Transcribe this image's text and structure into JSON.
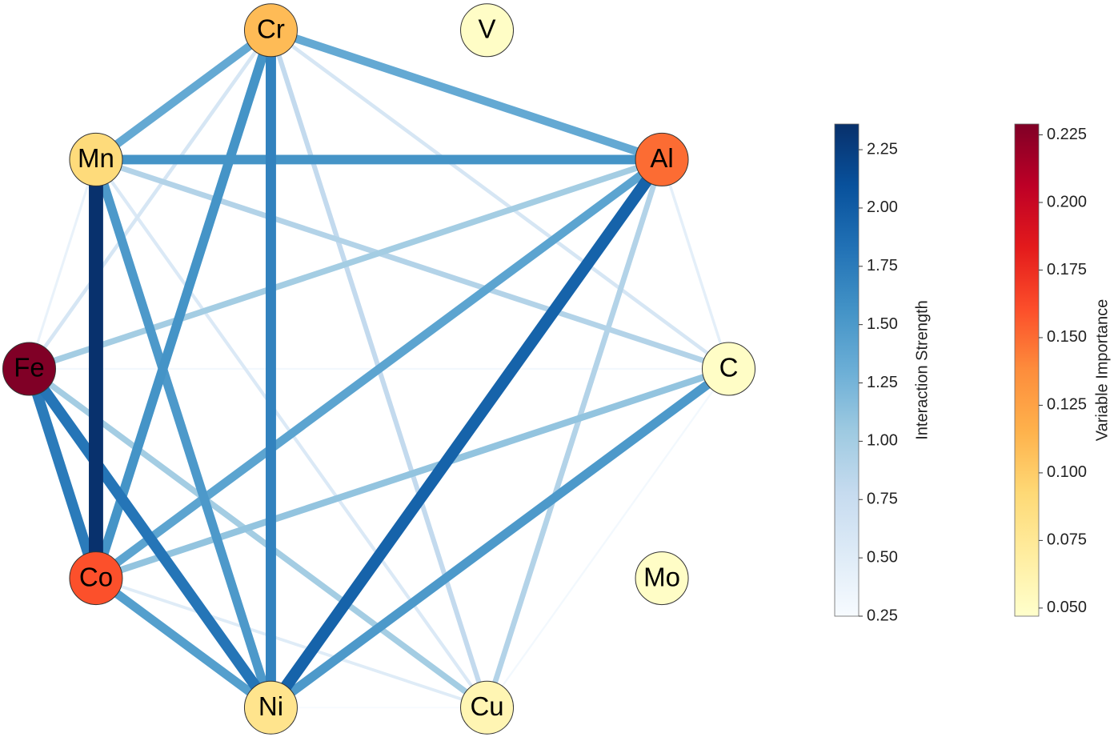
{
  "chart_data": {
    "type": "network",
    "nodes": [
      {
        "name": "V",
        "importance": 0.05
      },
      {
        "name": "Al",
        "importance": 0.15
      },
      {
        "name": "C",
        "importance": 0.05
      },
      {
        "name": "Mo",
        "importance": 0.05
      },
      {
        "name": "Cu",
        "importance": 0.06
      },
      {
        "name": "Ni",
        "importance": 0.08
      },
      {
        "name": "Co",
        "importance": 0.16
      },
      {
        "name": "Fe",
        "importance": 0.229
      },
      {
        "name": "Mn",
        "importance": 0.09
      },
      {
        "name": "Cr",
        "importance": 0.11
      }
    ],
    "edges": [
      {
        "source": "Fe",
        "target": "C",
        "value": 0.3
      },
      {
        "source": "Ni",
        "target": "Cu",
        "value": 0.25
      },
      {
        "source": "C",
        "target": "Cu",
        "value": 0.3
      },
      {
        "source": "Fe",
        "target": "Mn",
        "value": 0.4
      },
      {
        "source": "Al",
        "target": "C",
        "value": 0.45
      },
      {
        "source": "Co",
        "target": "Cu",
        "value": 0.5
      },
      {
        "source": "Mn",
        "target": "Cu",
        "value": 0.55
      },
      {
        "source": "Fe",
        "target": "Cr",
        "value": 0.6
      },
      {
        "source": "Cr",
        "target": "C",
        "value": 0.6
      },
      {
        "source": "Cr",
        "target": "Cu",
        "value": 0.8
      },
      {
        "source": "Mn",
        "target": "C",
        "value": 0.9
      },
      {
        "source": "Al",
        "target": "Cu",
        "value": 0.9
      },
      {
        "source": "Fe",
        "target": "Al",
        "value": 1.0
      },
      {
        "source": "Fe",
        "target": "Cu",
        "value": 1.0
      },
      {
        "source": "C",
        "target": "Co",
        "value": 1.1
      },
      {
        "source": "Mn",
        "target": "Cr",
        "value": 1.35
      },
      {
        "source": "Cr",
        "target": "Al",
        "value": 1.35
      },
      {
        "source": "Al",
        "target": "Co",
        "value": 1.4
      },
      {
        "source": "Co",
        "target": "Ni",
        "value": 1.45
      },
      {
        "source": "Mn",
        "target": "Ni",
        "value": 1.5
      },
      {
        "source": "C",
        "target": "Ni",
        "value": 1.5
      },
      {
        "source": "Cr",
        "target": "Co",
        "value": 1.55
      },
      {
        "source": "Mn",
        "target": "Al",
        "value": 1.55
      },
      {
        "source": "Cr",
        "target": "Ni",
        "value": 1.7
      },
      {
        "source": "Fe",
        "target": "Co",
        "value": 1.75
      },
      {
        "source": "Fe",
        "target": "Ni",
        "value": 1.8
      },
      {
        "source": "Al",
        "target": "Ni",
        "value": 1.95
      },
      {
        "source": "Mn",
        "target": "Co",
        "value": 2.35
      }
    ],
    "edge_colorbar": {
      "label": "Interaction Strength",
      "lim": [
        0.25,
        2.36
      ],
      "ticks": [
        0.25,
        {
          "value": 0.5,
          "label": "0.50"
        },
        0.75,
        {
          "value": 1,
          "label": "1.00"
        },
        1.25,
        {
          "value": 1.5,
          "label": "1.50"
        },
        1.75,
        {
          "value": 2,
          "label": "2.00"
        },
        2.25
      ],
      "colormap": [
        "#f7fbff",
        "#deebf7",
        "#c6dbef",
        "#9ecae1",
        "#6baed6",
        "#4292c6",
        "#2171b5",
        "#08519c",
        "#08306b"
      ]
    },
    "node_colorbar": {
      "label": "Variable Importance",
      "lim": [
        0.047,
        0.229
      ],
      "ticks": [
        {
          "value": 0.05,
          "label": "0.050"
        },
        0.075,
        {
          "value": 0.1,
          "label": "0.100"
        },
        0.125,
        {
          "value": 0.15,
          "label": "0.150"
        },
        0.175,
        {
          "value": 0.2,
          "label": "0.200"
        },
        0.225
      ],
      "colormap": [
        "#ffffcc",
        "#ffeda0",
        "#fed976",
        "#feb24c",
        "#fd8d3c",
        "#fc4e2a",
        "#e31a1c",
        "#bd0026",
        "#800026"
      ]
    }
  }
}
